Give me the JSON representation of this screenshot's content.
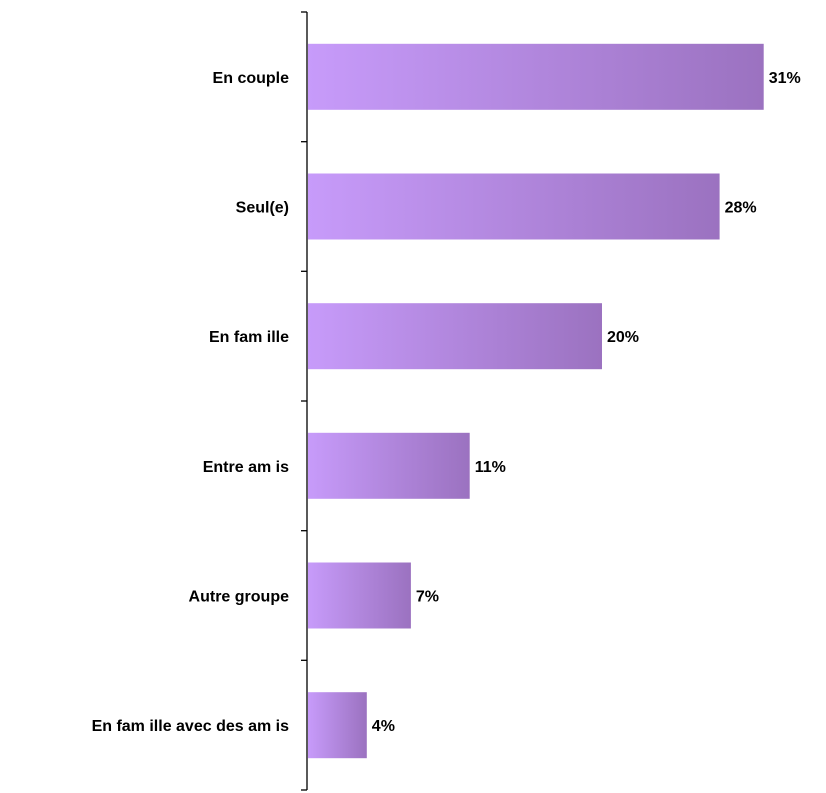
{
  "chart_data": {
    "type": "bar",
    "orientation": "horizontal",
    "categories": [
      "En couple",
      "Seul(e)",
      "En fam ille",
      "Entre am is",
      "Autre groupe",
      "En fam ille avec des am is"
    ],
    "values": [
      31,
      28,
      20,
      11,
      7,
      4
    ],
    "value_labels": [
      "31%",
      "28%",
      "20%",
      "11%",
      "7%",
      "4%"
    ],
    "title": "",
    "xlabel": "",
    "ylabel": "",
    "xlim": [
      0,
      35
    ],
    "grid": false,
    "legend": "none",
    "colors": {
      "bar_start": "#c79bfa",
      "bar_end": "#9b72c0",
      "axis": "#000000",
      "text": "#000000"
    }
  }
}
